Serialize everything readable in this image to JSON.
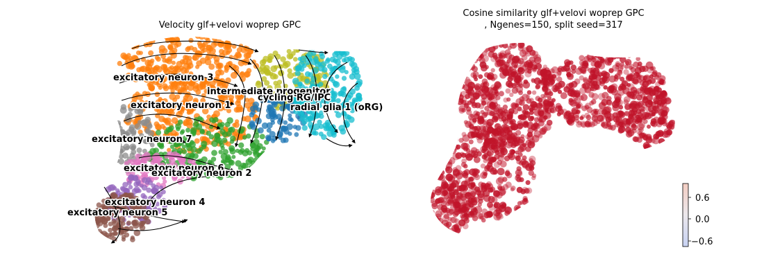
{
  "chart_data": [
    {
      "type": "scatter",
      "title": "Velocity glf+velovi woprep GPC",
      "xlabel": "",
      "ylabel": "",
      "axes_visible": false,
      "overlay": "velocity streamlines (black arrows)",
      "cell_types": [
        {
          "name": "excitatory neuron 3",
          "color": "#ff7f0e"
        },
        {
          "name": "intermediate progenitor",
          "color": "#bcbd22"
        },
        {
          "name": "cycling RG/IPC",
          "color": "#1f77b4"
        },
        {
          "name": "excitatory neuron 1",
          "color": "#ff7f0e"
        },
        {
          "name": "radial glia 1 (oRG)",
          "color": "#17becf"
        },
        {
          "name": "excitatory neuron 7",
          "color": "#8c8c8c"
        },
        {
          "name": "excitatory neuron 6",
          "color": "#e377c2"
        },
        {
          "name": "excitatory neuron 2",
          "color": "#2ca02c"
        },
        {
          "name": "excitatory neuron 4",
          "color": "#9467bd"
        },
        {
          "name": "excitatory neuron 5",
          "color": "#8c564b"
        }
      ]
    },
    {
      "type": "scatter",
      "title": "Cosine similarity glf+velovi woprep GPC",
      "subtitle": ", Ngenes=150, split seed=317",
      "xlabel": "",
      "ylabel": "",
      "axes_visible": false,
      "colormap": "coolwarm",
      "point_color": "#c0142a",
      "colorbar": {
        "ticks": [
          0.6,
          0.0,
          -0.6
        ],
        "tick_labels": [
          "0.6",
          "0.0",
          "−0.6"
        ],
        "range": [
          -0.85,
          0.85
        ]
      }
    }
  ]
}
